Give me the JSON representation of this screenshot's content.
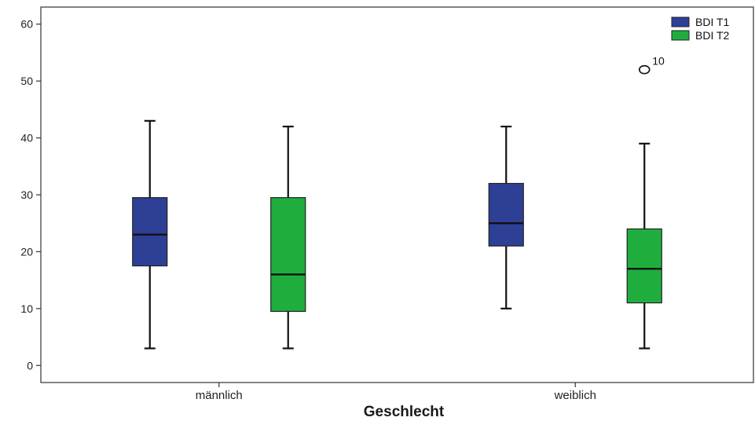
{
  "chart_data": {
    "type": "boxplot",
    "title": "",
    "xlabel": "Geschlecht",
    "ylabel": "",
    "ylim": [
      -3,
      63
    ],
    "yticks": [
      0,
      10,
      20,
      30,
      40,
      50,
      60
    ],
    "grid": false,
    "legend_position": "top-right",
    "categories": [
      "männlich",
      "weiblich"
    ],
    "series": [
      {
        "name": "BDI T1",
        "color": "#2e3f96",
        "boxes": [
          {
            "category": "männlich",
            "min": 3,
            "q1": 17.5,
            "median": 23,
            "q3": 29.5,
            "max": 43
          },
          {
            "category": "weiblich",
            "min": 10,
            "q1": 21,
            "median": 25,
            "q3": 32,
            "max": 42
          }
        ]
      },
      {
        "name": "BDI T2",
        "color": "#1fae3e",
        "boxes": [
          {
            "category": "männlich",
            "min": 3,
            "q1": 9.5,
            "median": 16,
            "q3": 29.5,
            "max": 42
          },
          {
            "category": "weiblich",
            "min": 3,
            "q1": 11,
            "median": 17,
            "q3": 24,
            "max": 39
          }
        ]
      }
    ],
    "outliers": [
      {
        "series": "BDI T2",
        "category": "weiblich",
        "value": 52,
        "label": "10"
      }
    ]
  }
}
